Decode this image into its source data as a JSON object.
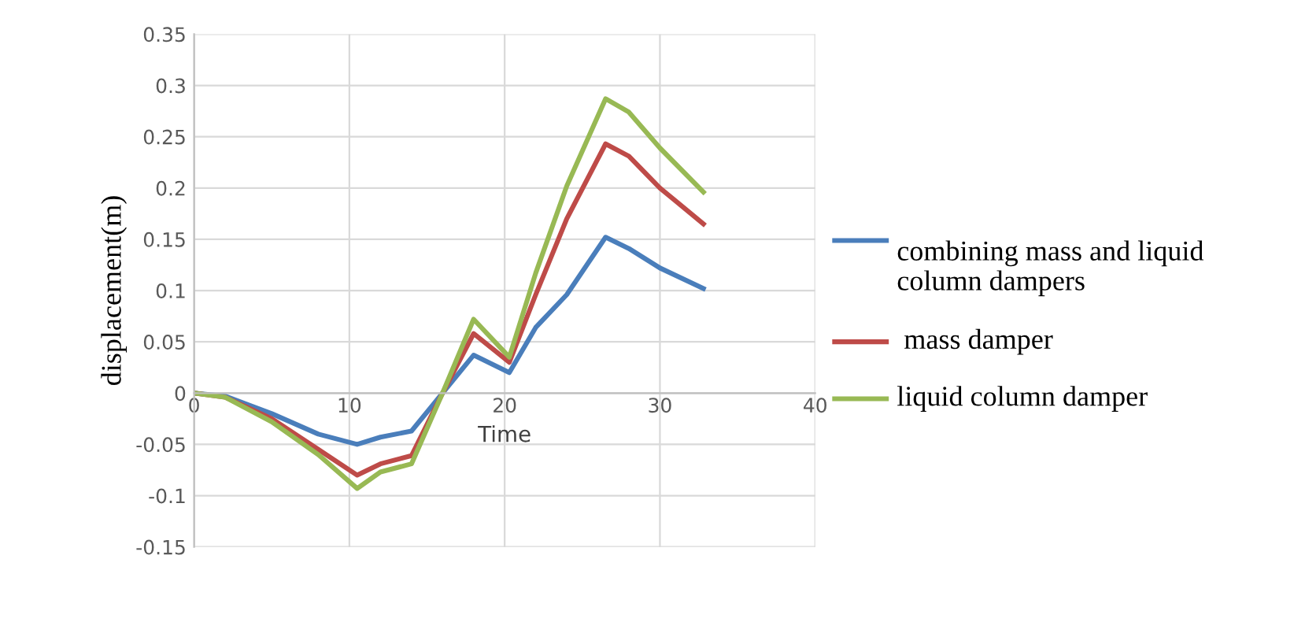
{
  "chart_data": {
    "type": "line",
    "xlabel": "Time",
    "ylabel": "displacement(m)",
    "xlim": [
      0,
      40
    ],
    "xticks": [
      0,
      10,
      20,
      30,
      40
    ],
    "ylim": [
      -0.15,
      0.35
    ],
    "yticks": [
      -0.15,
      -0.1,
      -0.05,
      0,
      0.05,
      0.1,
      0.15,
      0.2,
      0.25,
      0.3,
      0.35
    ],
    "grid": true,
    "legend": "right",
    "marker": "none",
    "line_style": "solid",
    "x": [
      0,
      2,
      5,
      8,
      10.5,
      12,
      14,
      16,
      18,
      20.3,
      22,
      24,
      26.5,
      28,
      30,
      32.8
    ],
    "series": [
      {
        "name": "combining mass and liquid column dampers",
        "color": "#4a7ebb",
        "values": [
          0,
          -0.003,
          -0.02,
          -0.04,
          -0.05,
          -0.043,
          -0.037,
          0,
          0.037,
          0.02,
          0.064,
          0.096,
          0.152,
          0.141,
          0.122,
          0.102
        ]
      },
      {
        "name": " mass damper",
        "color": "#be4b48",
        "values": [
          0,
          -0.004,
          -0.025,
          -0.055,
          -0.08,
          -0.069,
          -0.061,
          0,
          0.058,
          0.03,
          0.096,
          0.17,
          0.243,
          0.231,
          0.2,
          0.165
        ]
      },
      {
        "name": "liquid column damper",
        "color": "#98b954",
        "values": [
          0,
          -0.004,
          -0.028,
          -0.06,
          -0.093,
          -0.077,
          -0.069,
          0,
          0.072,
          0.035,
          0.117,
          0.202,
          0.287,
          0.274,
          0.239,
          0.196
        ]
      }
    ]
  }
}
